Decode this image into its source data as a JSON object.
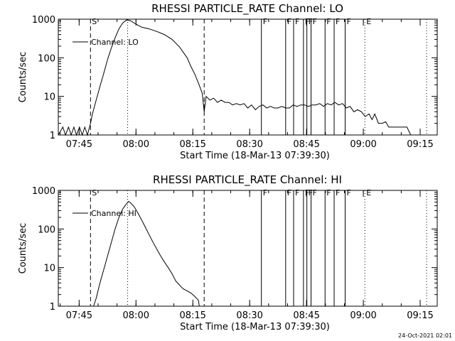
{
  "chart_data": [
    {
      "type": "line",
      "title": "RHESSI PARTICLE_RATE Channel: LO",
      "xlabel": "Start Time (18-Mar-13 07:39:30)",
      "ylabel": "Counts/sec",
      "yscale": "log",
      "ylim": [
        1,
        1000
      ],
      "xlim_minutes": [
        0,
        100
      ],
      "y_ticks": [
        {
          "value": 1,
          "label": "1"
        },
        {
          "value": 10,
          "label": "10"
        },
        {
          "value": 100,
          "label": "100"
        },
        {
          "value": 1000,
          "label": "1000"
        }
      ],
      "x_ticks": [
        {
          "minute": 5.5,
          "label": "07:45"
        },
        {
          "minute": 20.5,
          "label": "08:00"
        },
        {
          "minute": 35.5,
          "label": "08:15"
        },
        {
          "minute": 50.5,
          "label": "08:30"
        },
        {
          "minute": 65.5,
          "label": "08:45"
        },
        {
          "minute": 80.5,
          "label": "09:00"
        },
        {
          "minute": 95.5,
          "label": "09:15"
        }
      ],
      "legend": {
        "label": "Channel: LO",
        "position": "top-left"
      },
      "markers": [
        {
          "minute": 8.5,
          "label": "S",
          "style": "dashed"
        },
        {
          "minute": 18.3,
          "label": "",
          "style": "dotted"
        },
        {
          "minute": 38.5,
          "label": "",
          "style": "dashed"
        },
        {
          "minute": 53.6,
          "label": "F",
          "style": "solid"
        },
        {
          "minute": 60.0,
          "label": "F",
          "style": "solid"
        },
        {
          "minute": 62.1,
          "label": "F",
          "style": "solid"
        },
        {
          "minute": 64.7,
          "label": "F",
          "style": "solid"
        },
        {
          "minute": 65.6,
          "label": "F",
          "style": "solid"
        },
        {
          "minute": 66.7,
          "label": "F",
          "style": "solid"
        },
        {
          "minute": 70.4,
          "label": "F",
          "style": "solid"
        },
        {
          "minute": 72.8,
          "label": "F",
          "style": "solid"
        },
        {
          "minute": 75.7,
          "label": "F",
          "style": "solid"
        },
        {
          "minute": 80.9,
          "label": "E",
          "style": "dotted"
        },
        {
          "minute": 97.2,
          "label": "",
          "style": "dotted"
        }
      ],
      "series": [
        {
          "name": "Channel: LO",
          "x": [
            0,
            1.2,
            1.9,
            2.7,
            3.4,
            4.1,
            4.8,
            5.6,
            6.3,
            7.0,
            7.7,
            8.5,
            9,
            10,
            11,
            12,
            13,
            14,
            15,
            16,
            17,
            18,
            19,
            20,
            21,
            22,
            24,
            26,
            28,
            30,
            32,
            34,
            35,
            36,
            37,
            38,
            38.5,
            39,
            40,
            41,
            42,
            43,
            44,
            45,
            46,
            47,
            48,
            49,
            50,
            51,
            52,
            53,
            54,
            55,
            56,
            57,
            58,
            59,
            60,
            61,
            62,
            63,
            64,
            65,
            66,
            67,
            68,
            69,
            70,
            71,
            72,
            73,
            74,
            75,
            76,
            77,
            78,
            79,
            80,
            81,
            82,
            82.8,
            83.5,
            84.5,
            85.5,
            86.4,
            87.2,
            88,
            89,
            90,
            91,
            92,
            93,
            94,
            94.8,
            95.5
          ],
          "values": [
            1,
            1.6,
            1,
            1.6,
            1,
            1.6,
            1,
            1.6,
            1,
            1.6,
            1,
            2,
            3.5,
            8,
            18,
            40,
            90,
            180,
            330,
            560,
            800,
            950,
            920,
            800,
            700,
            620,
            560,
            480,
            400,
            300,
            190,
            100,
            60,
            38,
            22,
            12,
            4,
            10,
            8,
            9,
            7,
            8,
            7,
            7,
            6,
            6.5,
            6,
            6.5,
            5,
            6,
            4.5,
            5.5,
            6,
            5,
            5.5,
            5,
            5,
            5.5,
            5,
            5,
            6,
            5.5,
            6,
            6,
            5.5,
            6,
            6,
            6.5,
            5.5,
            6.5,
            6,
            7,
            6,
            6.5,
            5,
            5.5,
            4,
            4.5,
            4,
            3,
            3.5,
            2.5,
            3.5,
            2,
            2,
            2.2,
            1.6,
            1.6,
            1.6,
            1.6,
            1.6,
            1.6,
            1,
            1,
            1,
            1
          ]
        }
      ]
    },
    {
      "type": "line",
      "title": "RHESSI PARTICLE_RATE Channel: HI",
      "xlabel": "Start Time (18-Mar-13 07:39:30)",
      "ylabel": "Counts/sec",
      "yscale": "log",
      "ylim": [
        1,
        1000
      ],
      "xlim_minutes": [
        0,
        100
      ],
      "y_ticks": [
        {
          "value": 1,
          "label": "1"
        },
        {
          "value": 10,
          "label": "10"
        },
        {
          "value": 100,
          "label": "100"
        },
        {
          "value": 1000,
          "label": "1000"
        }
      ],
      "x_ticks": [
        {
          "minute": 5.5,
          "label": "07:45"
        },
        {
          "minute": 20.5,
          "label": "08:00"
        },
        {
          "minute": 35.5,
          "label": "08:15"
        },
        {
          "minute": 50.5,
          "label": "08:30"
        },
        {
          "minute": 65.5,
          "label": "08:45"
        },
        {
          "minute": 80.5,
          "label": "09:00"
        },
        {
          "minute": 95.5,
          "label": "09:15"
        }
      ],
      "legend": {
        "label": "Channel: HI",
        "position": "top-left"
      },
      "markers": [
        {
          "minute": 8.5,
          "label": "S",
          "style": "dashed"
        },
        {
          "minute": 18.3,
          "label": "",
          "style": "dotted"
        },
        {
          "minute": 38.5,
          "label": "",
          "style": "dashed"
        },
        {
          "minute": 53.6,
          "label": "F",
          "style": "solid"
        },
        {
          "minute": 60.0,
          "label": "F",
          "style": "solid"
        },
        {
          "minute": 62.1,
          "label": "F",
          "style": "solid"
        },
        {
          "minute": 64.7,
          "label": "F",
          "style": "solid"
        },
        {
          "minute": 65.6,
          "label": "F",
          "style": "solid"
        },
        {
          "minute": 66.7,
          "label": "F",
          "style": "solid"
        },
        {
          "minute": 70.4,
          "label": "F",
          "style": "solid"
        },
        {
          "minute": 72.8,
          "label": "F",
          "style": "solid"
        },
        {
          "minute": 75.7,
          "label": "F",
          "style": "solid"
        },
        {
          "minute": 80.9,
          "label": "E",
          "style": "dotted"
        },
        {
          "minute": 97.2,
          "label": "",
          "style": "dotted"
        }
      ],
      "series": [
        {
          "name": "Channel: HI",
          "x": [
            9.3,
            10,
            11,
            12,
            13,
            14,
            15,
            16,
            17,
            18,
            18.6,
            19,
            20,
            21,
            22,
            23,
            24,
            25,
            26,
            27,
            28,
            29,
            30,
            31,
            32,
            33,
            34,
            35,
            36,
            36.5,
            37,
            37.2
          ],
          "values": [
            1,
            1.6,
            4,
            9,
            20,
            45,
            100,
            200,
            330,
            450,
            520,
            480,
            380,
            260,
            170,
            110,
            70,
            45,
            30,
            20,
            14,
            10,
            7,
            4.5,
            3.5,
            2.8,
            2.5,
            2.2,
            1.8,
            1.6,
            1.4,
            1
          ]
        }
      ]
    }
  ],
  "timestamp": "24-Oct-2021 02:01"
}
